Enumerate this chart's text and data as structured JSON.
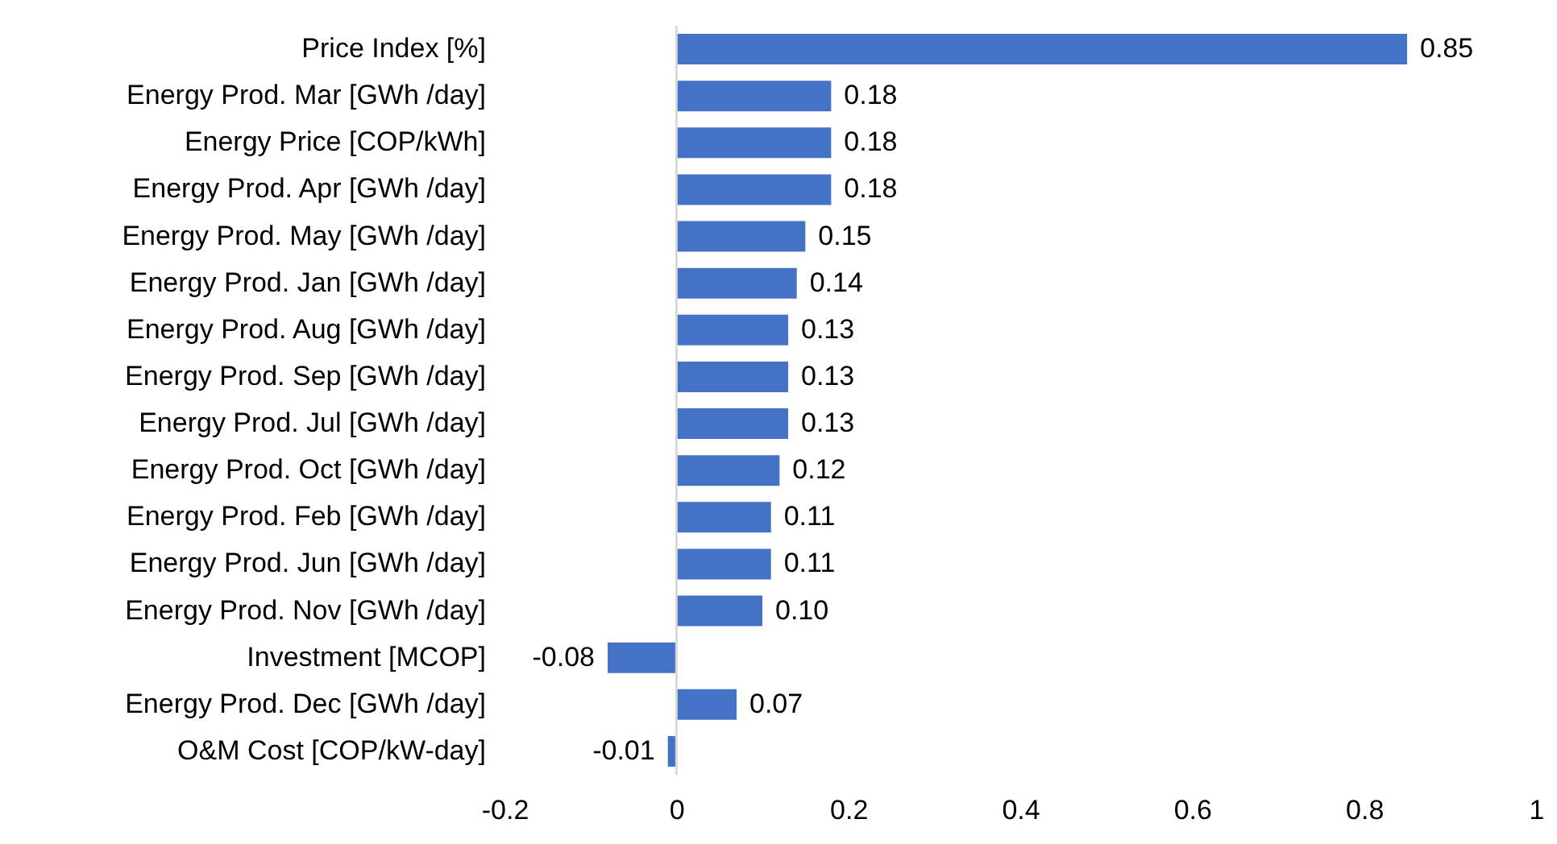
{
  "chart_data": {
    "type": "bar",
    "orientation": "horizontal",
    "categories": [
      "Price Index [%]",
      "Energy Prod. Mar [GWh /day]",
      "Energy Price [COP/kWh]",
      "Energy Prod. Apr [GWh /day]",
      "Energy Prod. May [GWh /day]",
      "Energy Prod. Jan [GWh /day]",
      "Energy Prod. Aug [GWh /day]",
      "Energy Prod. Sep [GWh /day]",
      "Energy Prod. Jul [GWh /day]",
      "Energy Prod. Oct [GWh /day]",
      "Energy Prod. Feb [GWh /day]",
      "Energy Prod. Jun [GWh /day]",
      "Energy Prod. Nov [GWh /day]",
      "Investment [MCOP]",
      "Energy Prod. Dec [GWh /day]",
      "O&M Cost [COP/kW-day]"
    ],
    "values": [
      0.85,
      0.18,
      0.18,
      0.18,
      0.15,
      0.14,
      0.13,
      0.13,
      0.13,
      0.12,
      0.11,
      0.11,
      0.1,
      -0.08,
      0.07,
      -0.01
    ],
    "color": "#4472c4",
    "xlim": [
      -0.2,
      1
    ],
    "xticks": [
      -0.2,
      0,
      0.2,
      0.4,
      0.6,
      0.8,
      1
    ],
    "value_labels": [
      "0.85",
      "0.18",
      "0.18",
      "0.18",
      "0.15",
      "0.14",
      "0.13",
      "0.13",
      "0.13",
      "0.12",
      "0.11",
      "0.11",
      "0.10",
      "-0.08",
      "0.07",
      "-0.01"
    ],
    "grid": false,
    "ref_lines": [
      {
        "axis": "x",
        "value": 0,
        "color": "#d9d9d9"
      }
    ]
  }
}
